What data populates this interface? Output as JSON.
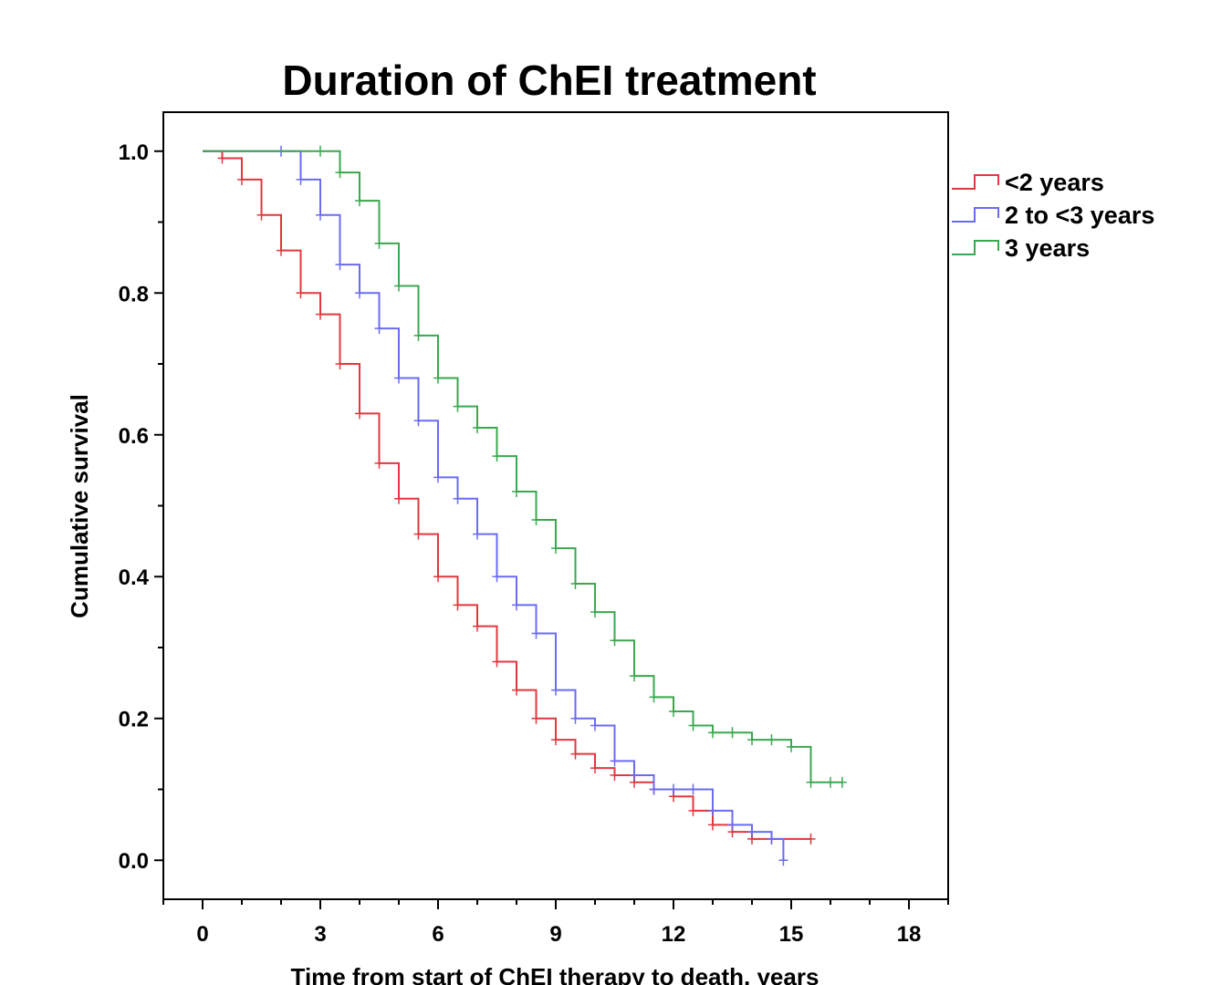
{
  "chart_data": {
    "type": "line",
    "title": "Duration of ChEI treatment",
    "xlabel": "Time from start of ChEI therapy to death, years",
    "ylabel": "Cumulative survival",
    "xlim": [
      -1,
      19
    ],
    "ylim": [
      -0.055,
      1.055
    ],
    "x_ticks": [
      0,
      3,
      6,
      9,
      12,
      15,
      18
    ],
    "x_tick_labels": [
      "0",
      "3",
      "6",
      "9",
      "12",
      "15",
      "18"
    ],
    "y_ticks": [
      0.0,
      0.2,
      0.4,
      0.6,
      0.8,
      1.0
    ],
    "y_tick_labels": [
      "0.0",
      "0.2",
      "0.4",
      "0.6",
      "0.8",
      "1.0"
    ],
    "grid": false,
    "legend_position": "right-top",
    "series": [
      {
        "name": "<2 years",
        "color": "#e0383e",
        "x": [
          0,
          0.5,
          1.0,
          1.5,
          2.0,
          2.5,
          3.0,
          3.5,
          4.0,
          4.5,
          5.0,
          5.5,
          6.0,
          6.5,
          7.0,
          7.5,
          8.0,
          8.5,
          9.0,
          9.5,
          10.0,
          10.5,
          11.0,
          11.5,
          12.0,
          12.5,
          13.0,
          13.5,
          14.0,
          14.5,
          15.5
        ],
        "y": [
          1.0,
          0.99,
          0.96,
          0.91,
          0.86,
          0.8,
          0.77,
          0.7,
          0.63,
          0.56,
          0.51,
          0.46,
          0.4,
          0.36,
          0.33,
          0.28,
          0.24,
          0.2,
          0.17,
          0.15,
          0.13,
          0.12,
          0.11,
          0.1,
          0.09,
          0.07,
          0.05,
          0.04,
          0.03,
          0.03,
          0.03
        ]
      },
      {
        "name": "2 to <3 years",
        "color": "#6b6bf2",
        "x": [
          0,
          2.0,
          2.5,
          3.0,
          3.5,
          4.0,
          4.5,
          5.0,
          5.5,
          6.0,
          6.5,
          7.0,
          7.5,
          8.0,
          8.5,
          9.0,
          9.5,
          10.0,
          10.5,
          11.0,
          11.5,
          12.0,
          12.5,
          13.0,
          13.5,
          14.0,
          14.5,
          14.8
        ],
        "y": [
          1.0,
          1.0,
          0.96,
          0.91,
          0.84,
          0.8,
          0.75,
          0.68,
          0.62,
          0.54,
          0.51,
          0.46,
          0.4,
          0.36,
          0.32,
          0.24,
          0.2,
          0.19,
          0.14,
          0.12,
          0.1,
          0.1,
          0.1,
          0.07,
          0.05,
          0.04,
          0.03,
          0.0
        ]
      },
      {
        "name": "3 years",
        "color": "#3aa84e",
        "x": [
          0,
          3.0,
          3.5,
          4.0,
          4.5,
          5.0,
          5.5,
          6.0,
          6.5,
          7.0,
          7.5,
          8.0,
          8.5,
          9.0,
          9.5,
          10.0,
          10.5,
          11.0,
          11.5,
          12.0,
          12.5,
          13.0,
          13.5,
          14.0,
          14.5,
          15.0,
          15.5,
          16.0,
          16.3
        ],
        "y": [
          1.0,
          1.0,
          0.97,
          0.93,
          0.87,
          0.81,
          0.74,
          0.68,
          0.64,
          0.61,
          0.57,
          0.52,
          0.48,
          0.44,
          0.39,
          0.35,
          0.31,
          0.26,
          0.23,
          0.21,
          0.19,
          0.18,
          0.18,
          0.17,
          0.17,
          0.16,
          0.11,
          0.11,
          0.11
        ]
      }
    ]
  }
}
